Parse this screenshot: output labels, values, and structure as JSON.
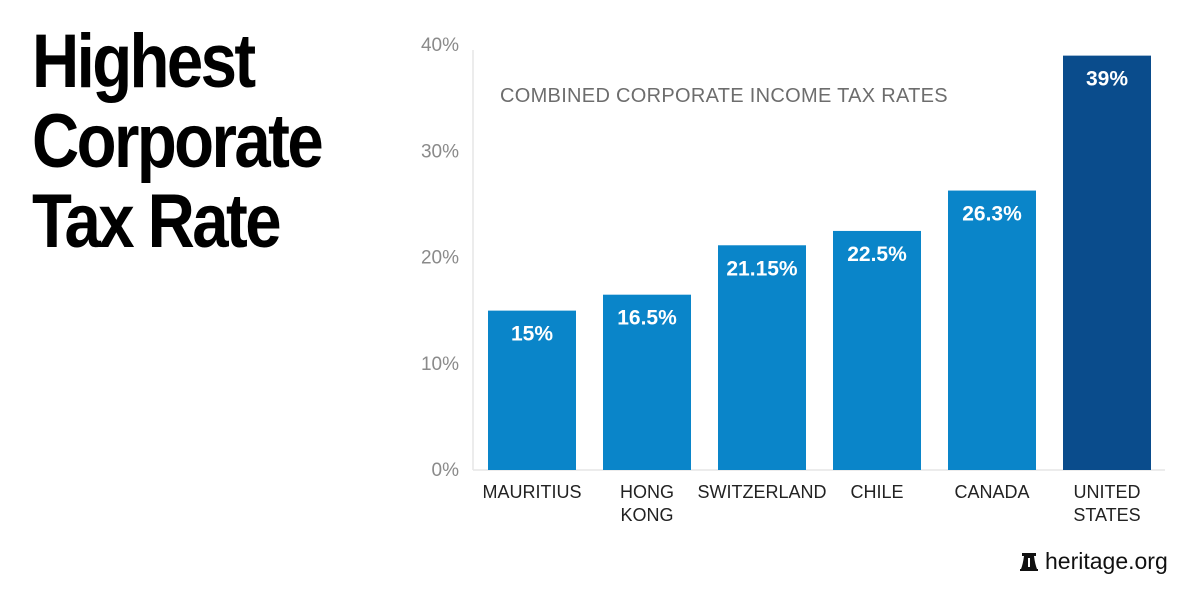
{
  "headline": [
    "Highest",
    "Corporate",
    "Tax Rate"
  ],
  "chart_data": {
    "type": "bar",
    "title": "COMBINED CORPORATE INCOME TAX RATES",
    "categories": [
      [
        "MAURITIUS"
      ],
      [
        "HONG",
        "KONG"
      ],
      [
        "SWITZERLAND"
      ],
      [
        "CHILE"
      ],
      [
        "CANADA"
      ],
      [
        "UNITED",
        "STATES"
      ]
    ],
    "values": [
      15,
      16.5,
      21.15,
      22.5,
      26.3,
      39
    ],
    "data_labels": [
      "15%",
      "16.5%",
      "21.15%",
      "22.5%",
      "26.3%",
      "39%"
    ],
    "ylim": [
      0,
      40
    ],
    "yticks": [
      0,
      10,
      20,
      30,
      40
    ],
    "ytick_labels": [
      "0%",
      "10%",
      "20%",
      "30%",
      "40%"
    ],
    "grid": false,
    "colors": {
      "default": "#0a85c9",
      "highlight": "#0a4c8c"
    },
    "highlight_index": 5
  },
  "branding": {
    "logo_text": "heritage.org",
    "icon": "liberty-bell-icon"
  }
}
